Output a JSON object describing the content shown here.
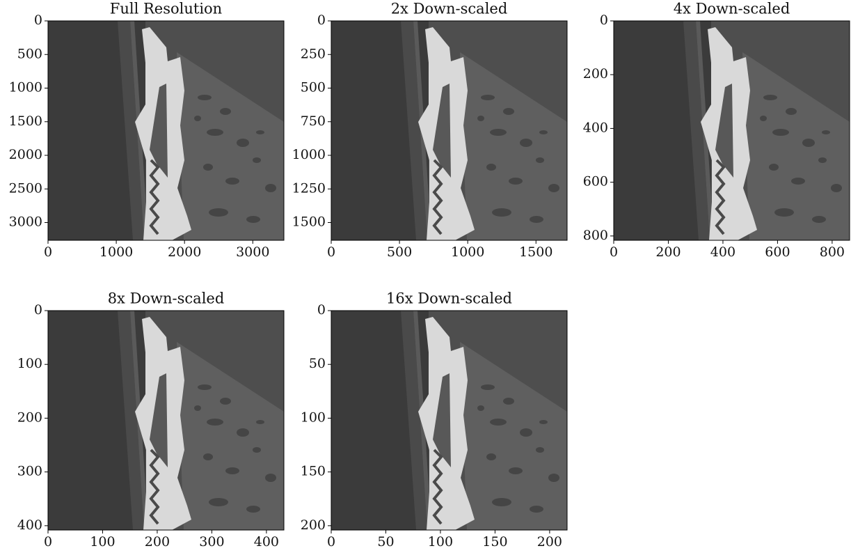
{
  "chart_data": [
    {
      "type": "image",
      "title": "Full Resolution",
      "xlim": [
        0,
        3456
      ],
      "ylim": [
        3264,
        0
      ],
      "xticks": [
        0,
        1000,
        2000,
        3000
      ],
      "yticks": [
        0,
        500,
        1000,
        1500,
        2000,
        2500,
        3000
      ]
    },
    {
      "type": "image",
      "title": "2x Down-scaled",
      "xlim": [
        0,
        1728
      ],
      "ylim": [
        1632,
        0
      ],
      "xticks": [
        0,
        500,
        1000,
        1500
      ],
      "yticks": [
        0,
        250,
        500,
        750,
        1000,
        1250,
        1500
      ]
    },
    {
      "type": "image",
      "title": "4x Down-scaled",
      "xlim": [
        0,
        864
      ],
      "ylim": [
        816,
        0
      ],
      "xticks": [
        0,
        200,
        400,
        600,
        800
      ],
      "yticks": [
        0,
        200,
        400,
        600,
        800
      ]
    },
    {
      "type": "image",
      "title": "8x Down-scaled",
      "xlim": [
        0,
        432
      ],
      "ylim": [
        408,
        0
      ],
      "xticks": [
        0,
        100,
        200,
        300,
        400
      ],
      "yticks": [
        0,
        100,
        200,
        300,
        400
      ]
    },
    {
      "type": "image",
      "title": "16x Down-scaled",
      "xlim": [
        0,
        216
      ],
      "ylim": [
        204,
        0
      ],
      "xticks": [
        0,
        50,
        100,
        150,
        200
      ],
      "yticks": [
        0,
        50,
        100,
        150,
        200
      ]
    }
  ]
}
